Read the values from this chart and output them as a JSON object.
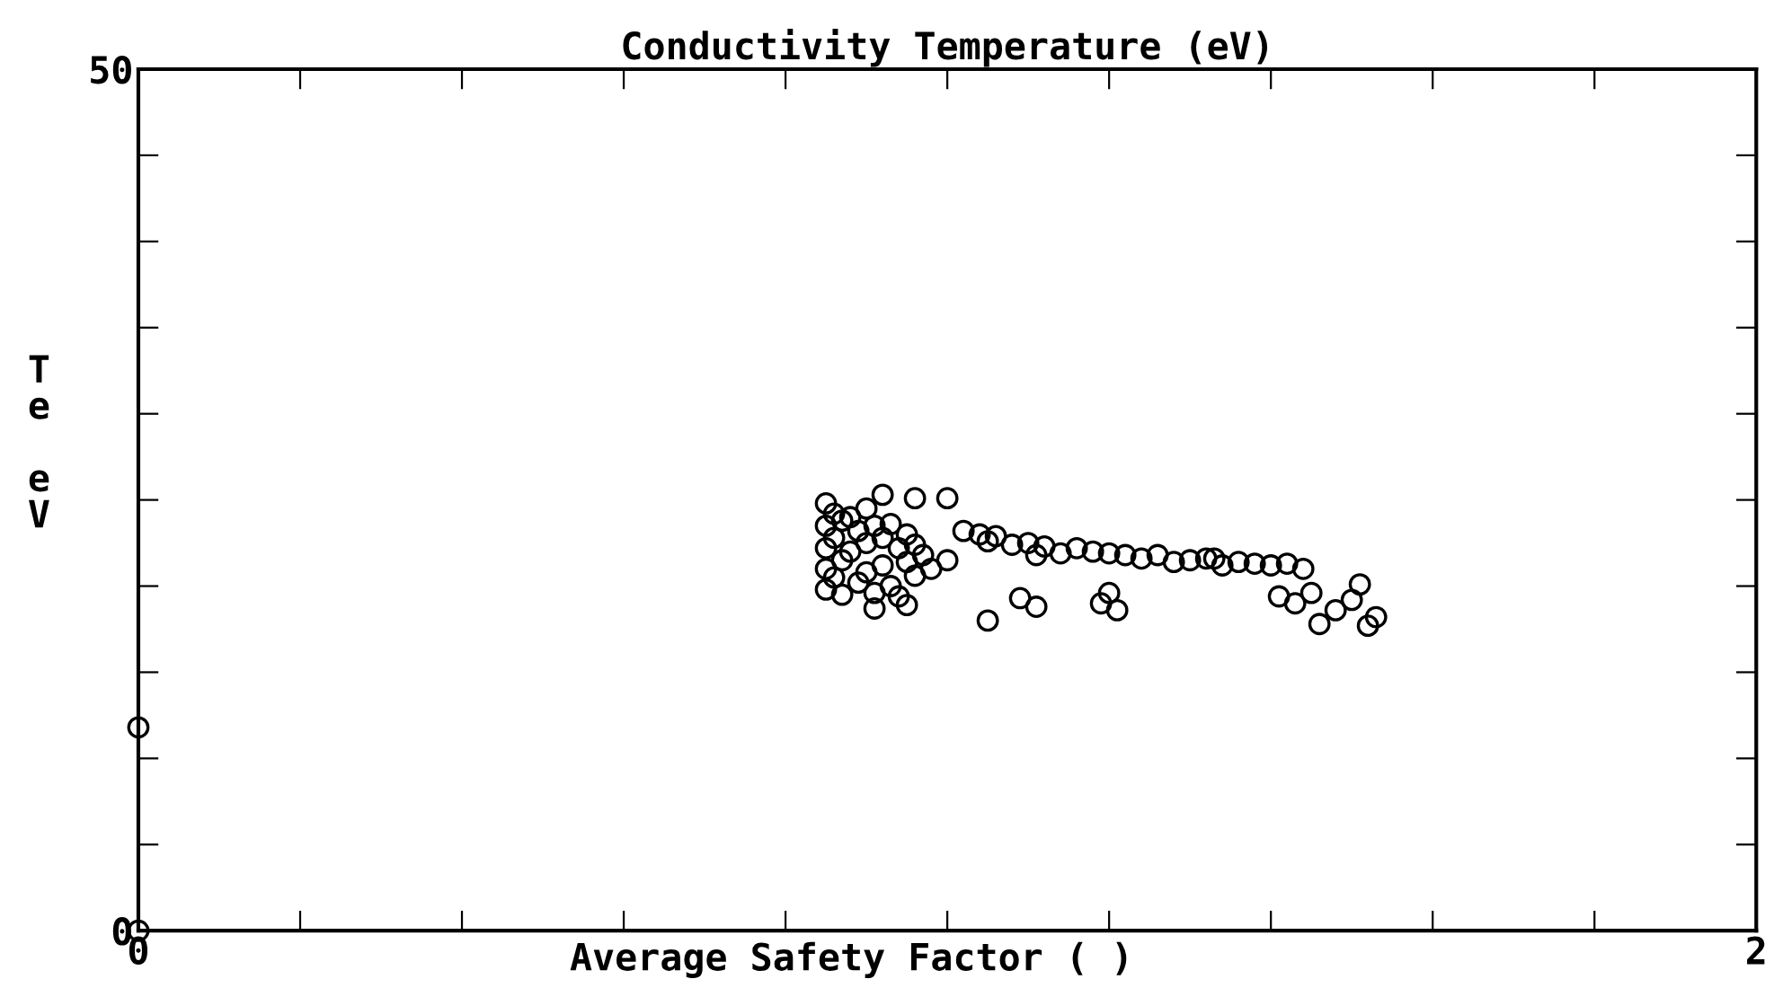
{
  "chart_data": {
    "type": "scatter",
    "title": "Conductivity Temperature (eV)",
    "xlabel": "Average Safety Factor ( )",
    "ylabel": "Te eV",
    "xlim": [
      0,
      2
    ],
    "ylim": [
      0,
      50
    ],
    "xticks": [
      0,
      {
        "value": 0.2,
        "label": null
      },
      {
        "value": 0.4,
        "label": null
      },
      {
        "value": 0.6,
        "label": null
      },
      {
        "value": 0.8,
        "label": null
      },
      {
        "value": 1.0,
        "label": null
      },
      {
        "value": 1.2,
        "label": null
      },
      {
        "value": 1.4,
        "label": null
      },
      {
        "value": 1.6,
        "label": null
      },
      {
        "value": 1.8,
        "label": null
      },
      2
    ],
    "yticks": [
      0,
      {
        "value": 5,
        "label": null
      },
      {
        "value": 10,
        "label": null
      },
      {
        "value": 15,
        "label": null
      },
      {
        "value": 20,
        "label": null
      },
      {
        "value": 25,
        "label": null
      },
      {
        "value": 30,
        "label": null
      },
      {
        "value": 35,
        "label": null
      },
      {
        "value": 40,
        "label": null
      },
      {
        "value": 45,
        "label": null
      },
      50
    ],
    "marker": "circle",
    "grid": false,
    "legend": false,
    "series": [
      {
        "color": "#000000",
        "x": [
          0,
          0,
          0.85,
          0.85,
          0.85,
          0.85,
          0.85,
          0.86,
          0.86,
          0.86,
          0.87,
          0.87,
          0.87,
          0.88,
          0.88,
          0.89,
          0.89,
          0.9,
          0.9,
          0.9,
          0.91,
          0.91,
          0.92,
          0.92,
          0.93,
          0.93,
          0.94,
          0.94,
          0.95,
          0.95,
          0.96,
          0.96,
          0.97,
          0.98,
          0.92,
          0.96,
          1.0,
          0.95,
          0.91,
          1.0,
          1.02,
          1.04,
          1.05,
          1.06,
          1.08,
          1.1,
          1.11,
          1.12,
          1.14,
          1.16,
          1.18,
          1.2,
          1.2,
          1.22,
          1.24,
          1.26,
          1.28,
          1.3,
          1.32,
          1.33,
          1.34,
          1.36,
          1.38,
          1.4,
          1.42,
          1.44,
          1.09,
          1.11,
          1.19,
          1.21,
          1.41,
          1.43,
          1.45,
          1.46,
          1.48,
          1.5,
          1.51,
          1.52,
          1.53,
          1.05
        ],
        "values": [
          0,
          11.8,
          24.8,
          23.5,
          22.2,
          21.0,
          19.8,
          24.2,
          22.8,
          20.5,
          23.8,
          21.5,
          19.5,
          24.0,
          22.0,
          23.2,
          20.2,
          24.5,
          22.5,
          20.8,
          23.5,
          19.6,
          22.8,
          21.2,
          23.6,
          20.0,
          22.2,
          19.4,
          23.0,
          21.4,
          22.4,
          20.6,
          21.8,
          21.0,
          25.3,
          25.1,
          25.1,
          18.9,
          18.7,
          21.5,
          23.2,
          23.0,
          22.6,
          22.9,
          22.4,
          22.5,
          21.8,
          22.3,
          21.9,
          22.2,
          22.0,
          21.9,
          19.6,
          21.8,
          21.6,
          21.8,
          21.4,
          21.5,
          21.6,
          21.6,
          21.2,
          21.4,
          21.3,
          21.2,
          21.3,
          21.0,
          19.3,
          18.8,
          19.0,
          18.6,
          19.4,
          19.0,
          19.6,
          17.8,
          18.6,
          19.2,
          20.1,
          17.7,
          18.2,
          18.0
        ]
      }
    ]
  }
}
